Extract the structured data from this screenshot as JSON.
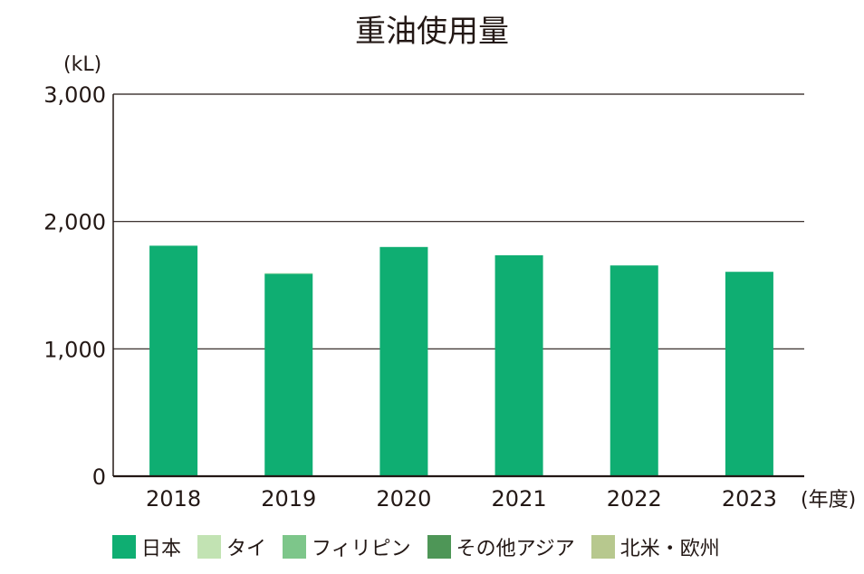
{
  "chart_data": {
    "type": "bar",
    "stacked": true,
    "title": "重油使用量",
    "unit_label": "(kL)",
    "x_unit_label": "(年度)",
    "categories": [
      "2018",
      "2019",
      "2020",
      "2021",
      "2022",
      "2023"
    ],
    "series": [
      {
        "name": "日本",
        "color": "#0fae72",
        "values": [
          1810,
          1590,
          1800,
          1735,
          1655,
          1605
        ]
      },
      {
        "name": "タイ",
        "color": "#c2e3b3",
        "values": [
          0,
          5,
          0,
          0,
          0,
          0
        ]
      },
      {
        "name": "フィリピン",
        "color": "#7dc68a",
        "values": [
          0,
          0,
          0,
          0,
          0,
          0
        ]
      },
      {
        "name": "その他アジア",
        "color": "#4e9657",
        "values": [
          0,
          0,
          0,
          0,
          0,
          0
        ]
      },
      {
        "name": "北米・欧州",
        "color": "#b7c88e",
        "values": [
          0,
          0,
          0,
          0,
          0,
          0
        ]
      }
    ],
    "ylim": [
      0,
      3000
    ],
    "yticks": [
      "3,000",
      "2,000",
      "1,000",
      "0"
    ],
    "ytick_values": [
      3000,
      2000,
      1000,
      0
    ],
    "grid": true,
    "legend": "bottom"
  }
}
